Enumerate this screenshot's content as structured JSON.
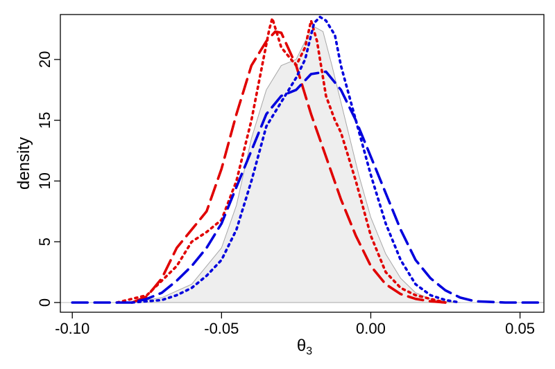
{
  "chart_data": {
    "type": "line",
    "title": "",
    "xlabel": "θ",
    "xlabel_subscript": "3",
    "ylabel": "density",
    "xlim": [
      -0.104,
      0.058
    ],
    "ylim": [
      -0.8,
      23.7
    ],
    "xticks": [
      -0.1,
      -0.05,
      0.0,
      0.05
    ],
    "xtick_labels": [
      "-0.10",
      "-0.05",
      "0.00",
      "0.05"
    ],
    "yticks": [
      0,
      5,
      10,
      15,
      20
    ],
    "ytick_labels": [
      "0",
      "5",
      "10",
      "15",
      "20"
    ],
    "grid": false,
    "legend": "none",
    "series": [
      {
        "style": "area",
        "color": "#eeeeee",
        "stroke": "#a8a8a8",
        "x": [
          -0.08,
          -0.07,
          -0.06,
          -0.05,
          -0.045,
          -0.04,
          -0.035,
          -0.03,
          -0.025,
          -0.022,
          -0.019,
          -0.016,
          -0.013,
          -0.01,
          -0.007,
          -0.004,
          0.0,
          0.005,
          0.01,
          0.015,
          0.02,
          0.025,
          0.03
        ],
        "y": [
          0.0,
          0.4,
          1.5,
          4.5,
          8.0,
          13.5,
          17.5,
          19.5,
          20.0,
          21.5,
          22.7,
          22.3,
          19.5,
          16.5,
          13.5,
          10.5,
          7.0,
          4.0,
          2.0,
          0.8,
          0.3,
          0.1,
          0.0
        ]
      },
      {
        "style": "longdash",
        "color": "#e00000",
        "x": [
          -0.08,
          -0.075,
          -0.07,
          -0.065,
          -0.06,
          -0.055,
          -0.05,
          -0.045,
          -0.04,
          -0.035,
          -0.032,
          -0.03,
          -0.025,
          -0.02,
          -0.015,
          -0.01,
          -0.005,
          0.0,
          0.005,
          0.01,
          0.015,
          0.02,
          0.025
        ],
        "y": [
          0.0,
          0.5,
          2.0,
          4.5,
          6.0,
          7.5,
          11.0,
          15.5,
          19.5,
          21.5,
          22.3,
          22.2,
          19.5,
          15.5,
          12.0,
          8.5,
          5.5,
          3.0,
          1.5,
          0.7,
          0.3,
          0.1,
          0.0
        ]
      },
      {
        "style": "dotted",
        "color": "#e00000",
        "x": [
          -0.085,
          -0.075,
          -0.07,
          -0.065,
          -0.06,
          -0.055,
          -0.05,
          -0.045,
          -0.04,
          -0.036,
          -0.034,
          -0.033,
          -0.03,
          -0.025,
          -0.022,
          -0.02,
          -0.018,
          -0.015,
          -0.012,
          -0.01,
          -0.005,
          0.0,
          0.005,
          0.01,
          0.015,
          0.02,
          0.025
        ],
        "y": [
          0.0,
          0.6,
          1.8,
          3.0,
          5.0,
          5.8,
          6.8,
          10.0,
          15.0,
          20.0,
          22.5,
          23.4,
          21.0,
          19.5,
          21.0,
          23.2,
          21.5,
          17.0,
          15.0,
          14.0,
          10.0,
          5.5,
          2.5,
          1.2,
          0.6,
          0.3,
          0.0
        ]
      },
      {
        "style": "longdash",
        "color": "#0000dd",
        "x": [
          -0.1,
          -0.08,
          -0.075,
          -0.07,
          -0.065,
          -0.06,
          -0.055,
          -0.05,
          -0.045,
          -0.04,
          -0.035,
          -0.03,
          -0.025,
          -0.02,
          -0.015,
          -0.01,
          -0.005,
          0.0,
          0.005,
          0.01,
          0.015,
          0.02,
          0.025,
          0.03,
          0.035,
          0.04,
          0.045,
          0.05,
          0.058
        ],
        "y": [
          0.0,
          0.0,
          0.3,
          0.8,
          1.8,
          3.0,
          4.5,
          6.5,
          9.5,
          12.5,
          15.5,
          17.0,
          17.5,
          18.8,
          19.0,
          17.5,
          15.0,
          12.0,
          9.0,
          6.0,
          3.5,
          2.0,
          1.0,
          0.4,
          0.1,
          0.05,
          0.0,
          0.0,
          0.0
        ]
      },
      {
        "style": "dotted",
        "color": "#0000dd",
        "x": [
          -0.08,
          -0.07,
          -0.065,
          -0.06,
          -0.055,
          -0.05,
          -0.045,
          -0.04,
          -0.035,
          -0.03,
          -0.025,
          -0.022,
          -0.019,
          -0.017,
          -0.015,
          -0.012,
          -0.01,
          -0.005,
          0.0,
          0.005,
          0.01,
          0.015,
          0.02,
          0.025,
          0.03
        ],
        "y": [
          0.0,
          0.2,
          0.6,
          1.2,
          2.2,
          3.5,
          6.0,
          10.0,
          14.5,
          16.5,
          18.5,
          20.0,
          23.0,
          23.5,
          23.2,
          22.0,
          19.5,
          15.0,
          10.5,
          6.5,
          3.5,
          1.5,
          0.6,
          0.2,
          0.0
        ]
      }
    ]
  }
}
